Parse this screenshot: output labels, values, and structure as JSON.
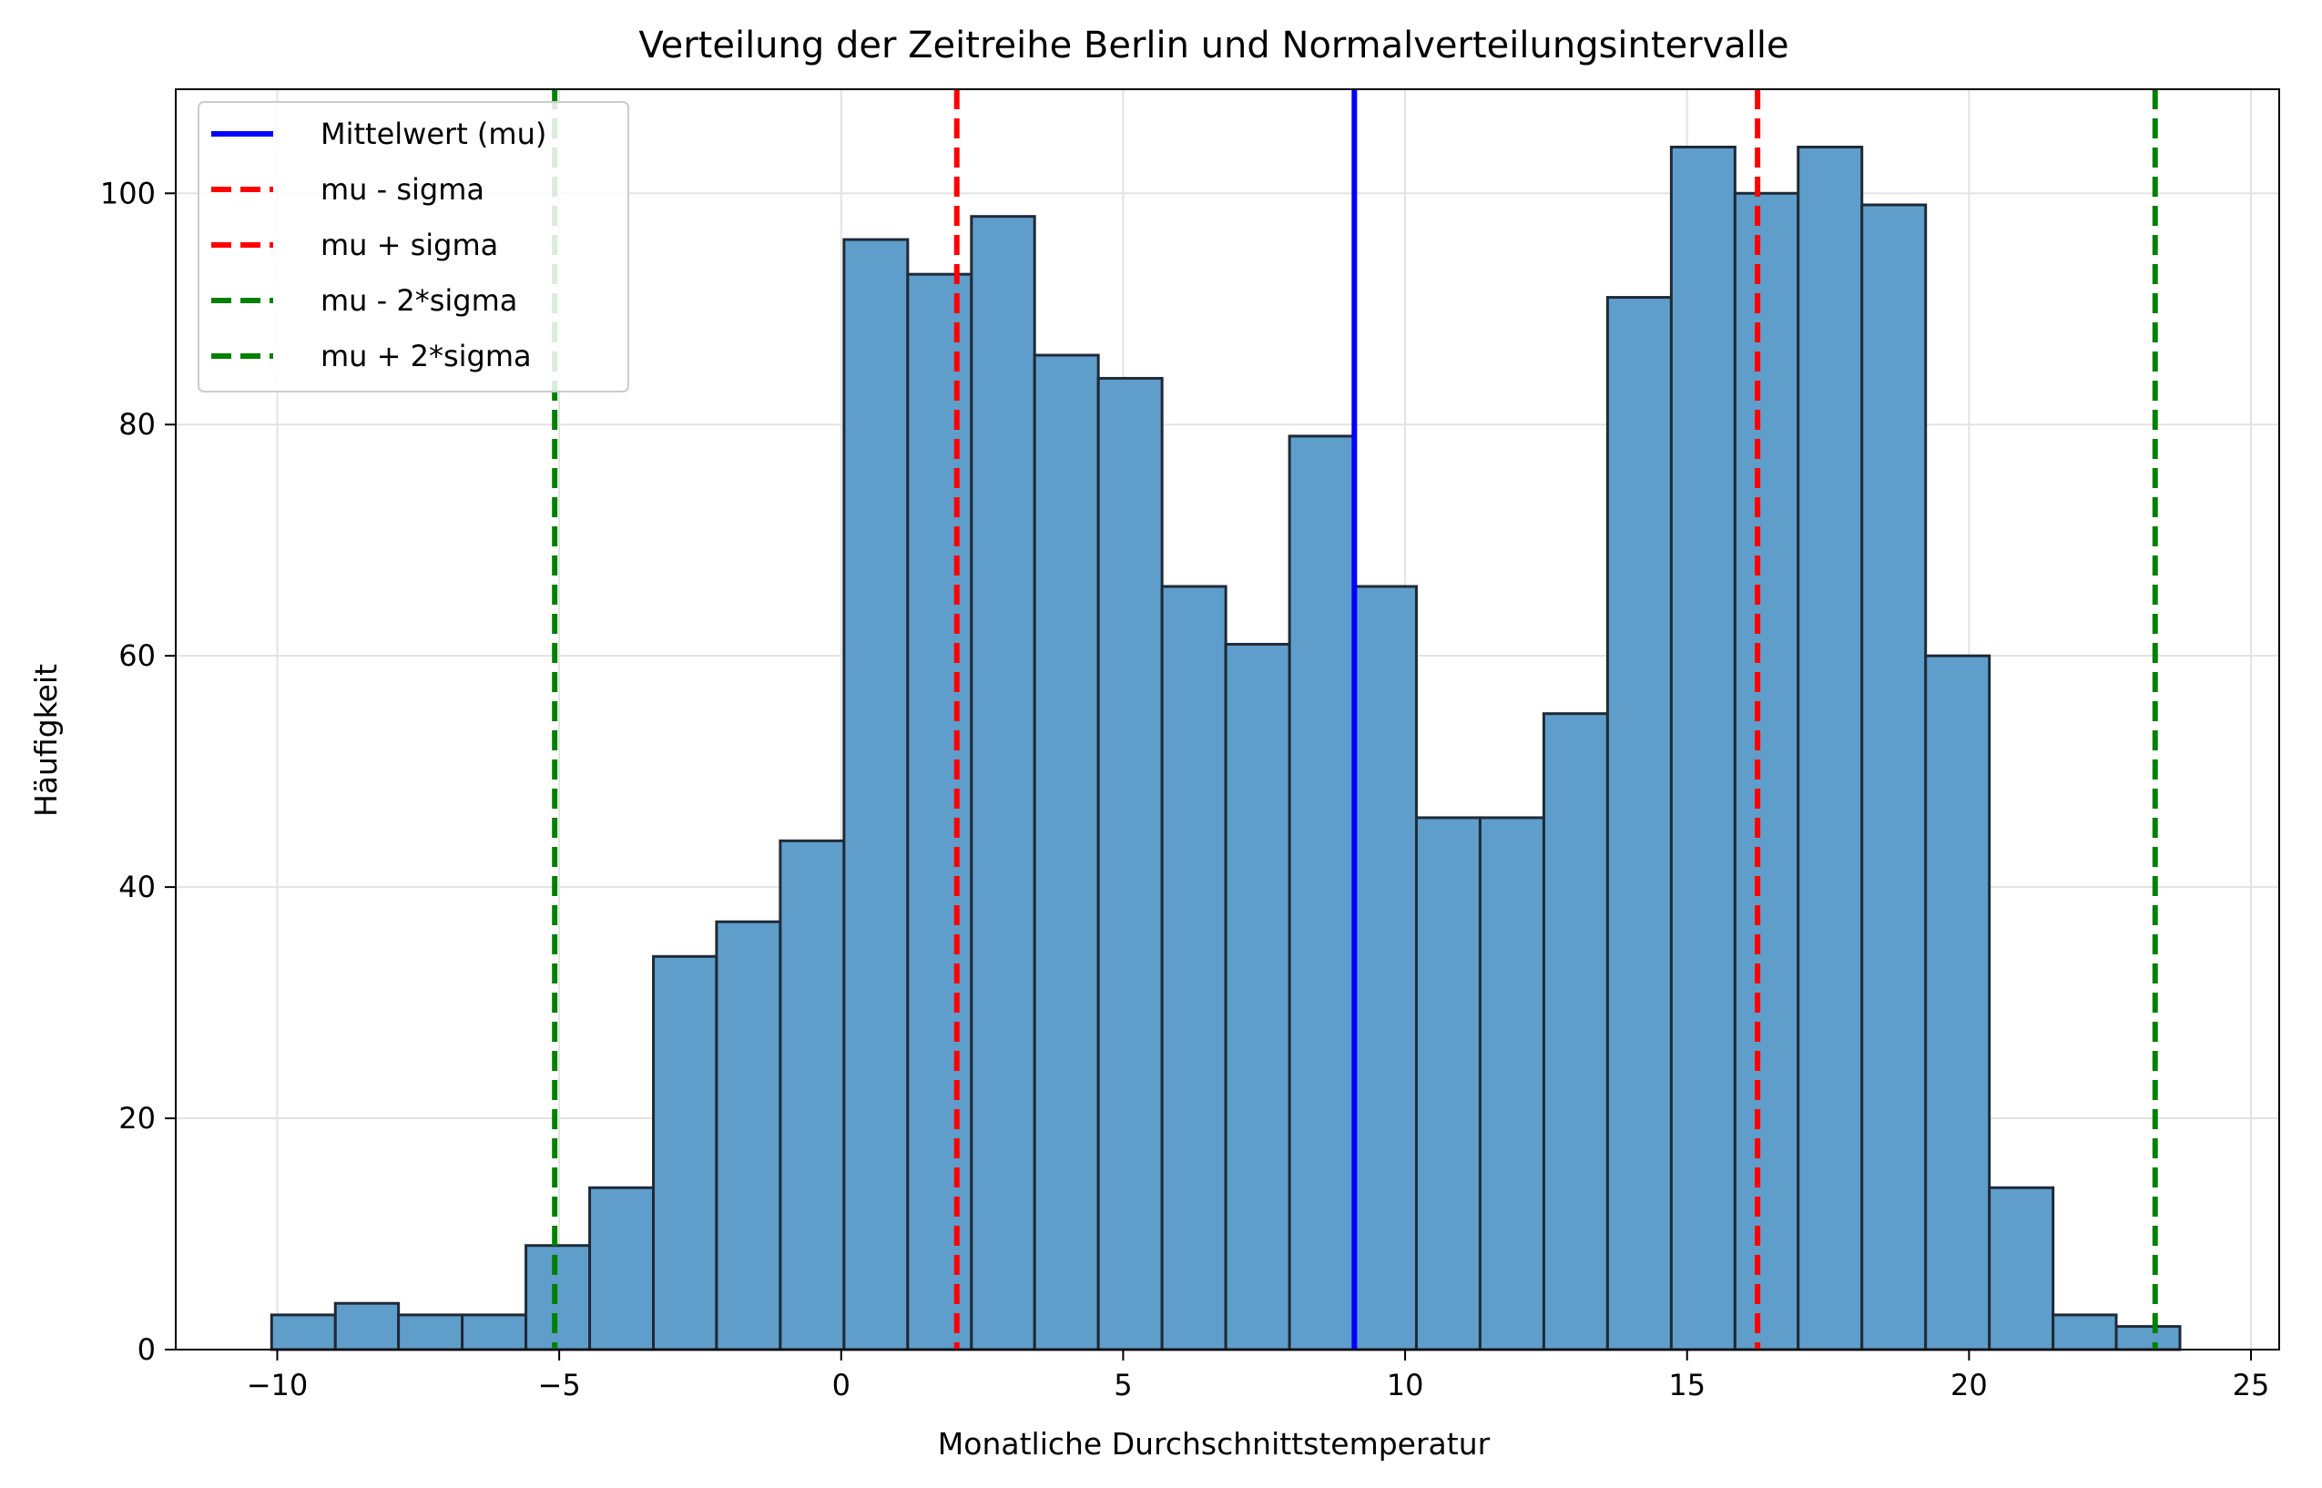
{
  "chart_data": {
    "type": "bar",
    "subtype": "histogram",
    "title": "Verteilung der Zeitreihe Berlin und Normalverteilungsintervalle",
    "xlabel": "Monatliche Durchschnittstemperatur",
    "ylabel": "Häufigkeit",
    "xlim": [
      -11.8,
      25.5
    ],
    "ylim": [
      0,
      109
    ],
    "xticks": [
      -10,
      -5,
      0,
      5,
      10,
      15,
      20,
      25
    ],
    "xtick_labels": [
      "−10",
      "−5",
      "0",
      "5",
      "10",
      "15",
      "20",
      "25"
    ],
    "yticks": [
      0,
      20,
      40,
      60,
      80,
      100
    ],
    "ytick_labels": [
      "0",
      "20",
      "40",
      "60",
      "80",
      "100"
    ],
    "grid": true,
    "legend_position": "top-left",
    "bin_edges": [
      -10.1,
      -8.97,
      -7.85,
      -6.72,
      -5.59,
      -4.46,
      -3.33,
      -2.21,
      -1.08,
      0.05,
      1.18,
      2.31,
      3.43,
      4.56,
      5.69,
      6.82,
      7.95,
      9.08,
      10.2,
      11.33,
      12.46,
      13.59,
      14.72,
      15.85,
      16.97,
      18.1,
      19.23,
      20.36,
      21.49,
      22.61,
      23.74
    ],
    "counts": [
      3,
      4,
      3,
      3,
      9,
      14,
      34,
      37,
      44,
      96,
      93,
      98,
      86,
      84,
      66,
      61,
      79,
      66,
      46,
      46,
      55,
      91,
      104,
      100,
      104,
      99,
      60,
      14,
      3,
      2
    ],
    "bar_color": "#5f9ecb",
    "bar_edge_color": "#1f2a36",
    "reference_lines": [
      {
        "name": "Mittelwert (mu)",
        "x": 9.1,
        "color": "#0000ff",
        "style": "solid"
      },
      {
        "name": "mu - sigma",
        "x": 2.05,
        "color": "#ff0000",
        "style": "dashed"
      },
      {
        "name": "mu + sigma",
        "x": 16.25,
        "color": "#ff0000",
        "style": "dashed"
      },
      {
        "name": "mu - 2*sigma",
        "x": -5.08,
        "color": "#008000",
        "style": "dashed"
      },
      {
        "name": "mu + 2*sigma",
        "x": 23.3,
        "color": "#008000",
        "style": "dashed"
      }
    ]
  }
}
